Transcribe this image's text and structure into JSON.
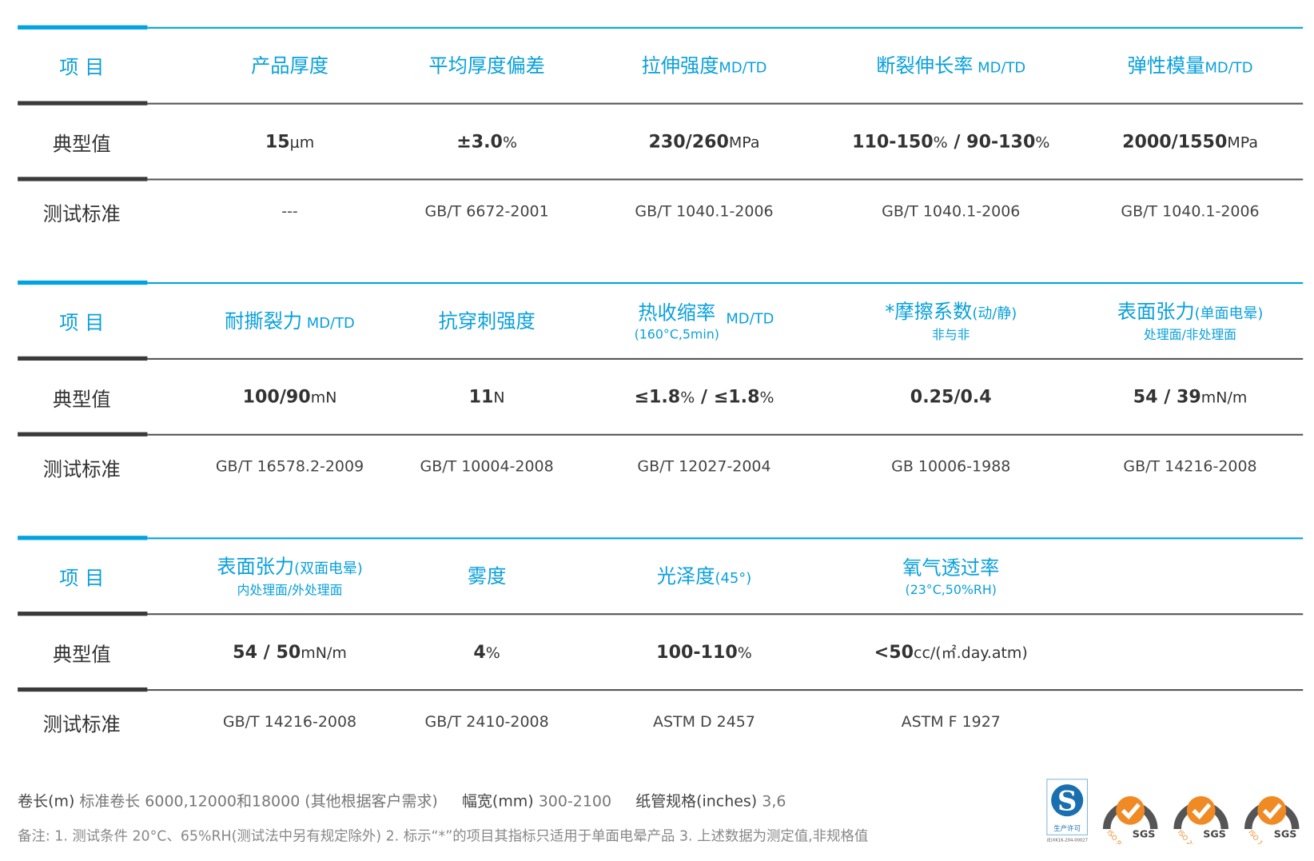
{
  "colors": {
    "accent": "#00a3e0",
    "dark": "#3a3a3a",
    "text": "#333333",
    "sgs_orange": "#f08a24"
  },
  "row_labels": {
    "item": "项 目",
    "typical": "典型值",
    "standard": "测试标准"
  },
  "sections": [
    {
      "headers": [
        {
          "main": "产品厚度"
        },
        {
          "main": "平均厚度偏差"
        },
        {
          "main": "拉伸强度",
          "suffix": "MD/TD"
        },
        {
          "main": "断裂伸长率",
          "suffix": " MD/TD"
        },
        {
          "main": "弹性模量",
          "suffix": "MD/TD"
        }
      ],
      "values": [
        [
          [
            "15",
            true
          ],
          [
            "μm",
            false
          ]
        ],
        [
          [
            "±3.0",
            true
          ],
          [
            "%",
            false
          ]
        ],
        [
          [
            "230/260",
            true
          ],
          [
            "MPa",
            false
          ]
        ],
        [
          [
            "110-150",
            true
          ],
          [
            "%",
            false
          ],
          [
            " / 90-130",
            true
          ],
          [
            "%",
            false
          ]
        ],
        [
          [
            "2000/1550",
            true
          ],
          [
            "MPa",
            false
          ]
        ]
      ],
      "standards": [
        "---",
        "GB/T 6672-2001",
        "GB/T 1040.1-2006",
        "GB/T 1040.1-2006",
        "GB/T 1040.1-2006"
      ]
    },
    {
      "headers": [
        {
          "main": "耐撕裂力",
          "suffix": " MD/TD"
        },
        {
          "main": "抗穿刺强度"
        },
        {
          "main": "热收缩率",
          "sub": "(160°C,5min)",
          "suffix": " MD/TD"
        },
        {
          "main": "*摩擦系数",
          "suffix": "(动/静)",
          "sub": "非与非"
        },
        {
          "main": "表面张力",
          "suffix": "(单面电晕)",
          "sub": "处理面/非处理面"
        }
      ],
      "values": [
        [
          [
            "100/90",
            true
          ],
          [
            "mN",
            false
          ]
        ],
        [
          [
            "11",
            true
          ],
          [
            "N",
            false
          ]
        ],
        [
          [
            "≤1.8",
            true
          ],
          [
            "%",
            false
          ],
          [
            " / ≤1.8",
            true
          ],
          [
            "%",
            false
          ]
        ],
        [
          [
            "0.25/0.4",
            true
          ]
        ],
        [
          [
            "54 / 39",
            true
          ],
          [
            "mN/m",
            false
          ]
        ]
      ],
      "standards": [
        "GB/T 16578.2-2009",
        "GB/T 10004-2008",
        "GB/T 12027-2004",
        "GB 10006-1988",
        "GB/T 14216-2008"
      ]
    },
    {
      "headers": [
        {
          "main": "表面张力",
          "suffix": "(双面电晕)",
          "sub": "内处理面/外处理面"
        },
        {
          "main": "雾度"
        },
        {
          "main": "光泽度",
          "suffix": "(45°)"
        },
        {
          "main": "氧气透过率",
          "sub": "(23°C,50%RH)"
        }
      ],
      "values": [
        [
          [
            "54 / 50",
            true
          ],
          [
            "mN/m",
            false
          ]
        ],
        [
          [
            "4",
            true
          ],
          [
            "%",
            false
          ]
        ],
        [
          [
            "100-110",
            true
          ],
          [
            "%",
            false
          ]
        ],
        [
          [
            "<50",
            true
          ],
          [
            "cc/(㎡.day.atm)",
            false
          ]
        ]
      ],
      "standards": [
        "GB/T 14216-2008",
        "GB/T 2410-2008",
        "ASTM D 2457",
        "ASTM F 1927"
      ]
    }
  ],
  "footer": {
    "roll_length_label": "卷长(m)",
    "roll_length_value": "标准卷长 6000,12000和18000 (其他根据客户需求)",
    "width_label": "幅宽(mm)",
    "width_value": "300-2100",
    "core_label": "纸管规格(inches)",
    "core_value": "3,6",
    "notes": "备注: 1. 测试条件 20°C、65%RH(测试法中另有规定除外) 2. 标示“*”的项目其指标只适用于单面电晕产品   3. 上述数据为测定值,非规格值"
  },
  "logos": [
    {
      "type": "qs",
      "text": "生产许可",
      "code": "(E)XK16-204-00027",
      "icon": "qs-license-icon"
    },
    {
      "type": "sgs",
      "ring": "SYSTEM CERTIFICATION",
      "iso": "ISO 9001",
      "brand": "SGS",
      "icon": "sgs-iso9001-icon"
    },
    {
      "type": "sgs",
      "ring": "SYSTEM CERTIFICATION",
      "iso": "ISO 22000",
      "brand": "SGS",
      "icon": "sgs-iso22000-icon"
    },
    {
      "type": "sgs",
      "ring": "SYSTEM CERTIFICATION",
      "iso": "ISO 14001",
      "brand": "SGS",
      "icon": "sgs-iso14001-icon"
    }
  ]
}
